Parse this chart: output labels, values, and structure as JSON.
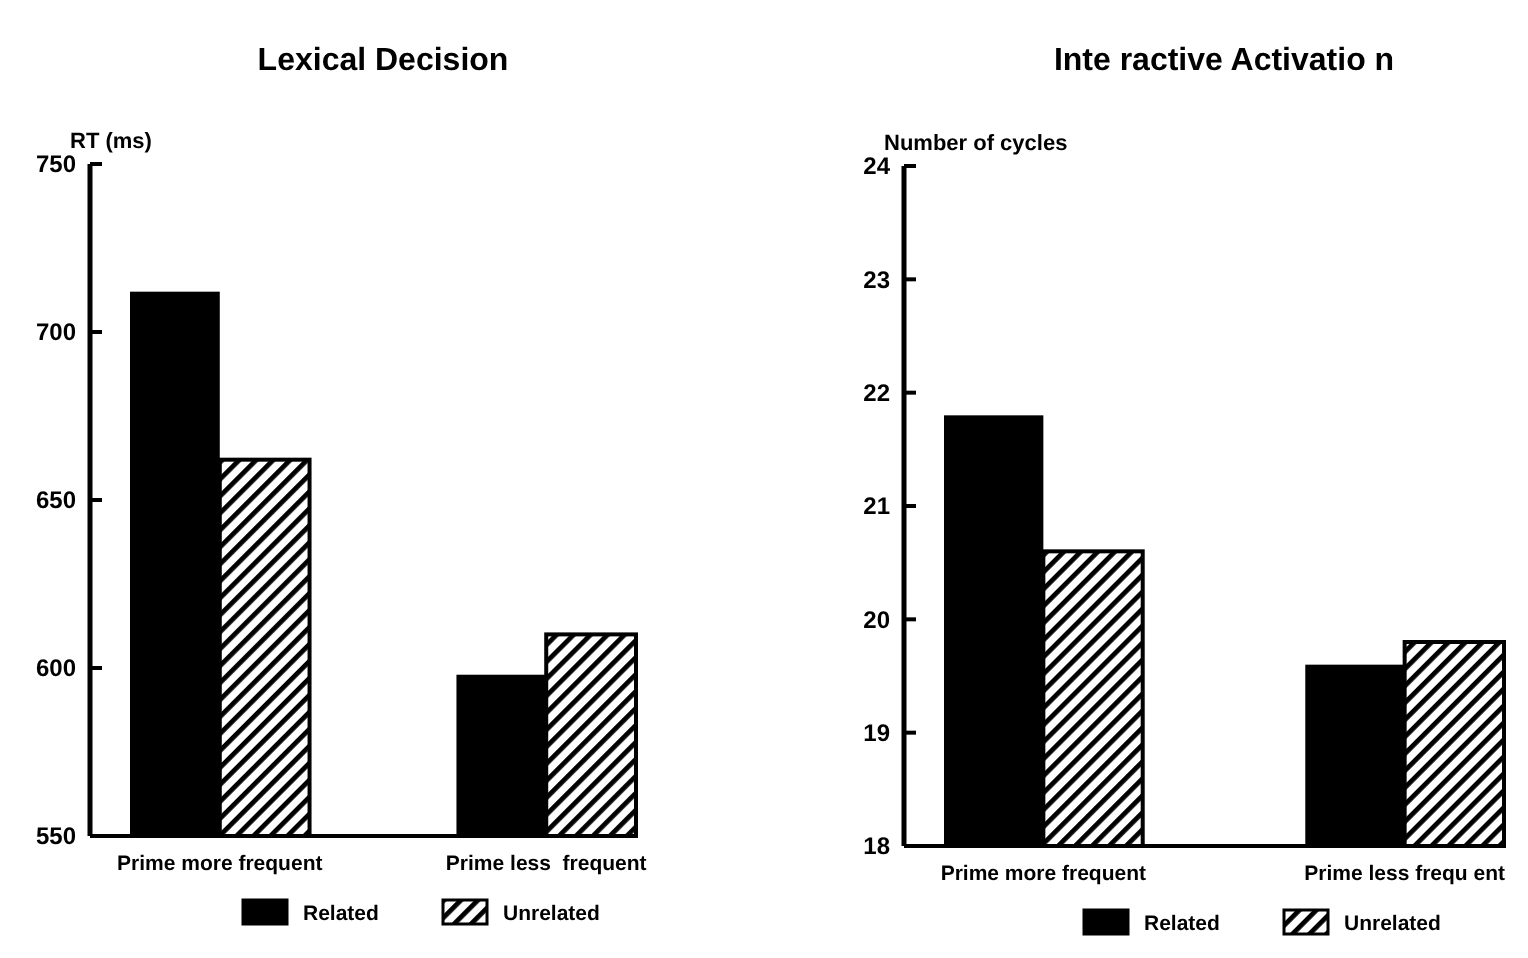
{
  "chart_data": [
    {
      "type": "bar",
      "title": "Lexical Decision",
      "ylabel": "RT (ms)",
      "categories": [
        "Prime more frequent",
        "Prime less  frequent"
      ],
      "series": [
        {
          "name": "Related",
          "color": "#000000",
          "values": [
            712,
            598
          ]
        },
        {
          "name": "Unrelated",
          "color": "#000000",
          "values": [
            662,
            610
          ]
        }
      ],
      "ylim": [
        550,
        750
      ],
      "yticks": [
        550,
        600,
        650,
        700,
        750
      ],
      "legend": "bottom",
      "grid": false
    },
    {
      "type": "bar",
      "title": "Inte ractive Activatio n",
      "ylabel": "Number of cycles",
      "categories": [
        "Prime more frequent",
        "Prime less frequ ent"
      ],
      "series": [
        {
          "name": "Related",
          "color": "#000000",
          "values": [
            21.8,
            19.6
          ]
        },
        {
          "name": "Unrelated",
          "color": "#000000",
          "values": [
            20.6,
            19.8
          ]
        }
      ],
      "ylim": [
        18,
        24
      ],
      "yticks": [
        18,
        19,
        20,
        21,
        22,
        23,
        24
      ],
      "legend": "bottom",
      "grid": false
    }
  ]
}
